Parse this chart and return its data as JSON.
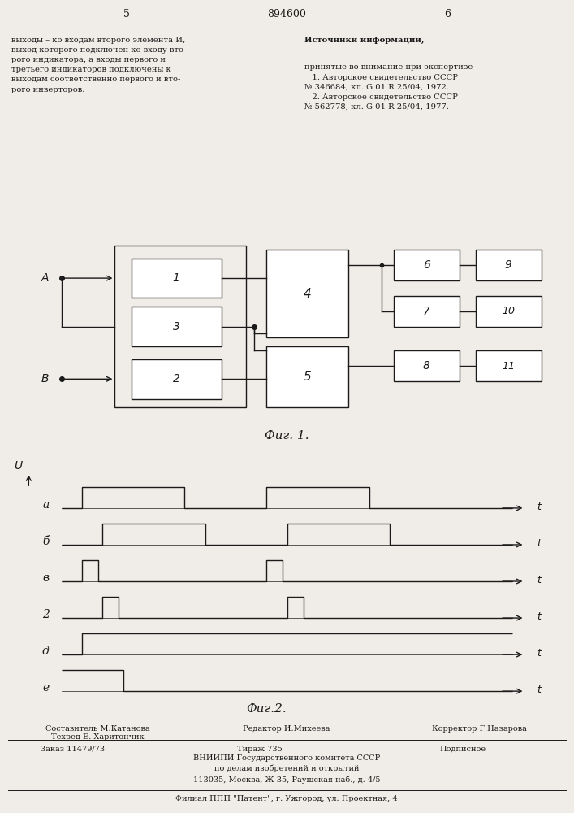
{
  "page_number_left": "5",
  "page_number_center": "894600",
  "page_number_right": "6",
  "left_text": "выходы – ко входам второго элемента И,\nвыход которого подключен ко входу вто-\nрого индикатора, а входы первого и\nтретьего индикаторов подключены к\nвыходам соответственно первого и вто-\nрого инверторов.",
  "right_text_title": "Источники информации,",
  "right_text_body": "принятые во внимание при экспертизе\n   1. Авторское свидетельство СССР\n№ 346684, кл. G 01 R 25/04, 1972.\n   2. Авторское свидетельство СССР\n№ 562778, кл. G 01 R 25/04, 1977.",
  "fig1_caption": "Фиг. 1.",
  "fig2_caption": "Фиг.2.",
  "bottom_editor": "Редактор И.Михеева",
  "bottom_composer": "Составитель М.Катанова",
  "bottom_techred": "Техред Е. Харитончик",
  "bottom_corrector": "Корректор Г.Назарова",
  "bottom_order": "Заказ 11479/73",
  "bottom_print": "Тираж 735",
  "bottom_subscription": "Подписное",
  "bottom_org": "ВНИИПИ Государственного комитета СССР\nпо делам изобретений и открытий\n113035, Москва, Ж-35, Раушская наб., д. 4/5",
  "bottom_branch": "Филиал ППП \"Патент\", г. Ужгород, ул. Проектная, 4",
  "bg_color": "#f0ede8",
  "line_color": "#1a1a1a",
  "wave_labels": [
    "a",
    "б",
    "в",
    "2",
    "д",
    "e"
  ],
  "wave_label_display": [
    "a",
    "б",
    "в",
    "2",
    "д",
    "e"
  ]
}
